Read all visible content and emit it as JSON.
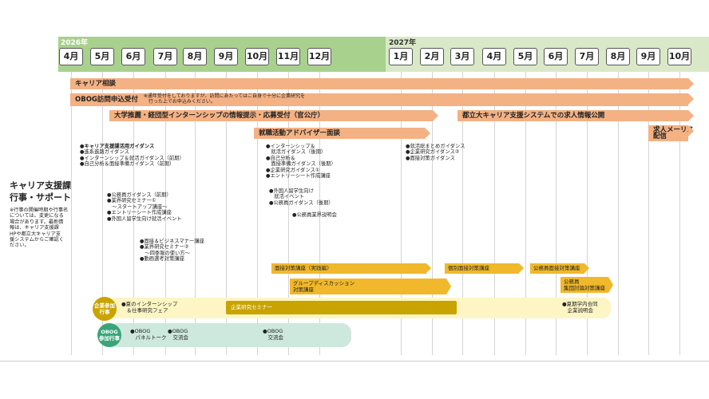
{
  "year_2026": "2026年",
  "year_2027": "2027年",
  "months": [
    "4月",
    "5月",
    "6月",
    "7月",
    "8月",
    "9月",
    "10月",
    "11月",
    "12月",
    "1月",
    "2月",
    "3月",
    "4月",
    "5月",
    "6月",
    "7月",
    "8月",
    "9月",
    "10月"
  ],
  "colors": {
    "band_2026": "#a9d18e",
    "band_2027": "#d9e8c7",
    "arrow": "#f4b183",
    "gold": "#f0b82a",
    "seminar": "#c9a300",
    "pill_yellow": "#fdf5c4",
    "pill_green": "#cde8dc",
    "circle_gold": "#c9a300",
    "circle_green": "#3aa47a"
  },
  "left_panel": {
    "title_line1": "キャリア支援課",
    "title_line2": "行事・サポート",
    "note": "※行事の開催時期や行事名\nについては、変更になる\n場合があります。最新情\n報は、キャリア支援課\nHPや都立大キャリア支\n援システムからご確認く\nださい。"
  },
  "arrows": {
    "career_consult": "キャリア相談",
    "obog_visit": "OBOG訪問申込受付",
    "obog_note": "※通年受付をしておりますが、訪問にあたってはご自身で十分に企業研究を\n　行った上でお申込みください。",
    "intern_info": "大学推薦・経団型インターンシップの情報提示・応募受付（官公庁）",
    "job_info": "都立大キャリア支援システムでの求人情報公開",
    "advisor": "就職活動アドバイザー面談",
    "job_mail": "求人メーリス\n配信"
  },
  "list_apr": [
    "●キャリア支援課活用ガイダンス",
    "●進系進路ガイダンス",
    "●インターンシップ＆就活ガイダンス（前期）",
    "●自己分析＆面接準備ガイダンス（前期）"
  ],
  "list_jun": [
    "●公務員ガイダンス（前期）",
    "●業界研究セミナー①",
    "　〜スタートアップ講座〜",
    "●エントリーシート作成講座",
    "●外国人留学生向け就活イベント"
  ],
  "list_jul": [
    "●面接＆ビジネスマナー講座",
    "●業界研究セミナー②",
    "　〜四季報の使い方〜",
    "●動画選考対策講座"
  ],
  "list_nov": [
    "●インターンシップ＆",
    "　就活ガイダンス（後期）",
    "●自己分析＆",
    "　面接準備ガイダンス（後期）",
    "●企業研究ガイダンス①",
    "●エントリーシート作成講座"
  ],
  "list_nov2": [
    "●外国人留学生向け",
    "　就活イベント",
    "●公務員ガイダンス（後期）"
  ],
  "list_nov3": [
    "●公務員業界説明会"
  ],
  "list_jan": [
    "●就活総まとめガイダンス",
    "●企業研究ガイダンス②",
    "●面接対策ガイダンス"
  ],
  "gold_bars": {
    "mensetsu_taisaku": "面接対策講座〈実践編〉",
    "group": "グループディスカッション\n対策講座",
    "kobetsu": "個別面接対策講座",
    "komuin": "公務員面接対策講座",
    "komuin2": "公務員\n集団討論対策講座"
  },
  "company_events": {
    "badge": "企業参加\n行事",
    "summer": "●夏のインターンシップ\n　＆仕事研究フェア",
    "seminar": "企業研究セミナー",
    "gakunai": "●夏期学内合同\n　企業説明会"
  },
  "obog_events": {
    "badge": "OBOG\n参加行事",
    "e1": "●OBOG\n　パネルトーク",
    "e2": "●OBOG\n　交流会",
    "e3": "●OBOG\n　交流会"
  }
}
